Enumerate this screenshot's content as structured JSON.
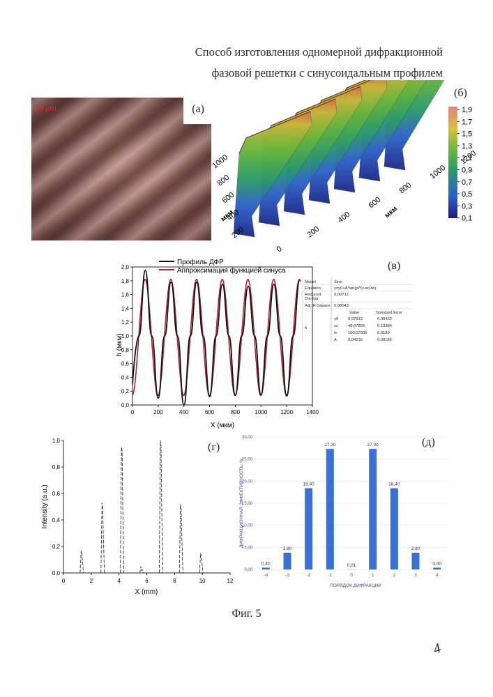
{
  "title_line1": "Способ изготовления одномерной дифракционной",
  "title_line2": "фазовой решетки с синусоидальным профилем",
  "panel_a": {
    "label": "(а)",
    "scale_text": "50 µm"
  },
  "panel_b": {
    "label": "(б)",
    "colorbar_ticks": [
      "1,9",
      "1,7",
      "1,5",
      "1,3",
      "1,1",
      "0,9",
      "0,7",
      "0,5",
      "0,3",
      "0,1"
    ],
    "y_ticks": [
      "1000",
      "800",
      "600",
      "400",
      "200"
    ],
    "y_label": "мкм",
    "x_ticks": [
      "0",
      "200",
      "400",
      "600",
      "800",
      "1000",
      "1200"
    ],
    "x_label": "мкм"
  },
  "panel_v": {
    "label": "(в)",
    "legend": [
      "Профиль ДФР",
      "Аппроксимация функцией синуса"
    ],
    "ylabel": "h (мкм)",
    "xlabel": "X (мкм)",
    "table": {
      "model_label": "Model",
      "model": "Sine",
      "equation_label": "Equation",
      "equation": "y=y0+A*sin(pi*(x-xc)/w)",
      "chisq_label1": "Reduced",
      "chisq_label2": "Chi-Sqr",
      "chisq": "0,00712",
      "adjr_label": "Adj. R-Square",
      "adjr": "0,98043",
      "col_value": "Value",
      "col_err": "Standard Error",
      "group": "h",
      "rows": [
        {
          "p": "y0",
          "v": "0,97913",
          "e": "0,00432"
        },
        {
          "p": "xc",
          "v": "48,07866",
          "e": "0,13384"
        },
        {
          "p": "w",
          "v": "100,07035",
          "e": "0,0189"
        },
        {
          "p": "A",
          "v": "0,84216",
          "e": "0,00186"
        }
      ]
    }
  },
  "panel_g": {
    "label": "(г)",
    "ylabel": "Intensity (a.u.)",
    "xlabel": "X (mm)"
  },
  "panel_d": {
    "label": "(д)",
    "ylabel": "ДИФРАКЦИОННАЯ ЭФФЕКТИВНОСТЬ, %",
    "xlabel": "ПОРЯДОК ДИФРАКЦИИ"
  },
  "caption": "Фиг. 5",
  "page_mark": "4",
  "colors": {
    "profile": "#111111",
    "fit": "#b22234",
    "bar": "#3a6fd6",
    "image_bg": "#8a5a55"
  },
  "chart_data": [
    {
      "type": "line",
      "xlabel": "X (мкм)",
      "ylabel": "h (мкм)",
      "xlim": [
        0,
        1400
      ],
      "ylim": [
        0,
        2.0
      ],
      "xticks": [
        0,
        200,
        400,
        600,
        800,
        1000,
        1200,
        1400
      ],
      "yticks": [
        0.0,
        0.2,
        0.4,
        0.6,
        0.8,
        1.0,
        1.2,
        1.4,
        1.6,
        1.8,
        2.0
      ],
      "series": [
        {
          "name": "Профиль ДФР",
          "x": [
            0,
            50,
            100,
            150,
            200,
            250,
            300,
            350,
            400,
            450,
            500,
            550,
            600,
            650,
            700,
            750,
            800,
            850,
            900,
            950,
            1000,
            1050,
            1100,
            1150,
            1200,
            1250,
            1300
          ],
          "y": [
            0.3,
            1.0,
            1.95,
            1.0,
            0.1,
            1.0,
            1.78,
            1.0,
            0.0,
            1.0,
            1.78,
            1.0,
            0.12,
            1.0,
            1.75,
            1.0,
            0.14,
            1.0,
            1.72,
            1.0,
            0.15,
            1.0,
            1.75,
            1.0,
            0.13,
            1.0,
            1.8
          ]
        },
        {
          "name": "Аппроксимация функцией синуса",
          "model": "y=y0+A*sin(pi*(x-xc)/w)",
          "params": {
            "y0": 0.97913,
            "xc": 48.07866,
            "w": 100.07035,
            "A": 0.84216
          }
        }
      ]
    },
    {
      "type": "line",
      "xlabel": "X (mm)",
      "ylabel": "Intensity (a.u.)",
      "xlim": [
        0,
        12
      ],
      "ylim": [
        0,
        1.0
      ],
      "xticks": [
        0,
        2,
        4,
        6,
        8,
        10,
        12
      ],
      "yticks": [
        0.0,
        0.2,
        0.4,
        0.6,
        0.8,
        1.0
      ],
      "peaks": [
        {
          "x": 1.3,
          "y": 0.17
        },
        {
          "x": 2.8,
          "y": 0.53
        },
        {
          "x": 4.2,
          "y": 0.95
        },
        {
          "x": 5.6,
          "y": 0.05
        },
        {
          "x": 7.0,
          "y": 1.0
        },
        {
          "x": 8.45,
          "y": 0.52
        },
        {
          "x": 9.9,
          "y": 0.15
        }
      ]
    },
    {
      "type": "bar",
      "xlabel": "ПОРЯДОК ДИФРАКЦИИ",
      "ylabel": "ДИФРАКЦИОННАЯ ЭФФЕКТИВНОСТЬ, %",
      "categories": [
        "-4",
        "-3",
        "-2",
        "-1",
        "0",
        "1",
        "2",
        "3",
        "4"
      ],
      "values": [
        0.4,
        3.8,
        18.4,
        27.3,
        0.01,
        27.3,
        18.4,
        3.8,
        0.4
      ],
      "value_labels": [
        "0,40",
        "3,80",
        "18,40",
        "27,30",
        "0,01",
        "27,30",
        "18,40",
        "3,80",
        "0,40"
      ],
      "ylim": [
        0,
        30
      ],
      "yticks": [
        "0,00",
        "5,00",
        "10,00",
        "15,00",
        "20,00",
        "25,00",
        "30,00"
      ]
    }
  ]
}
